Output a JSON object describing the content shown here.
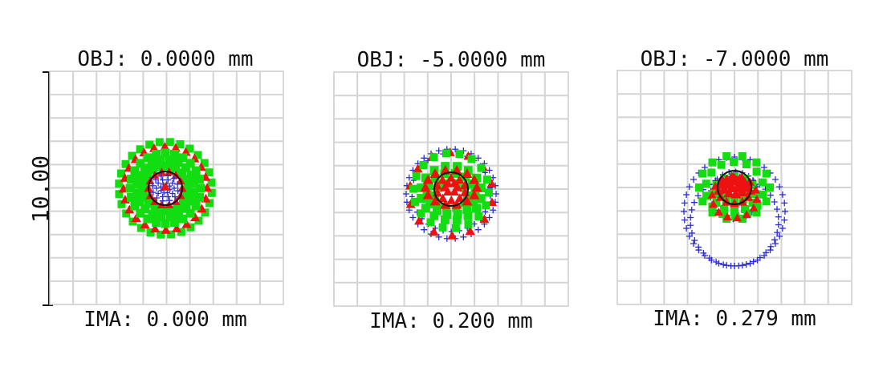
{
  "diagram": {
    "type": "spot-diagram",
    "scale_label": "10.00",
    "colors": {
      "grid": "#d4d4d4",
      "frame": "#cccccc",
      "ray_a": "#2b2bd0",
      "ray_b": "#11dd11",
      "ray_c": "#ee1111",
      "airy": "#111111"
    },
    "panels": [
      {
        "obj_label": "OBJ: 0.0000 mm",
        "ima_label": "IMA: 0.000 mm"
      },
      {
        "obj_label": "OBJ: -5.0000 mm",
        "ima_label": "IMA: 0.200 mm"
      },
      {
        "obj_label": "OBJ: -7.0000 mm",
        "ima_label": "IMA: 0.279 mm"
      }
    ]
  }
}
